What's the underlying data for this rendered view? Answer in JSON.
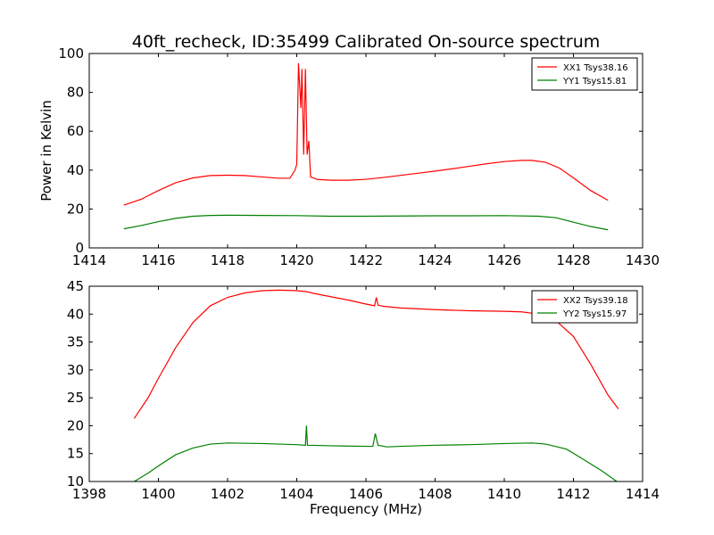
{
  "figure": {
    "title": "40ft_recheck, ID:35499 Calibrated On-source spectrum",
    "ylabel": "Power in Kelvin",
    "xlabel": "Frequency (MHz)"
  },
  "chart_data": [
    {
      "type": "line",
      "title": "40ft_recheck, ID:35499 Calibrated On-source spectrum",
      "xlabel": "",
      "ylabel": "Power in Kelvin",
      "xlim": [
        1414,
        1430
      ],
      "ylim": [
        0,
        100
      ],
      "xticks": [
        "1414",
        "1416",
        "1418",
        "1420",
        "1422",
        "1424",
        "1426",
        "1428",
        "1430"
      ],
      "yticks": [
        "0",
        "20",
        "40",
        "60",
        "80",
        "100"
      ],
      "grid": false,
      "legend_position": "top-right",
      "series": [
        {
          "name": "XX1 Tsys38.16",
          "color": "#ff0000",
          "points": [
            [
              1415.0,
              22.0
            ],
            [
              1415.5,
              25.0
            ],
            [
              1416.0,
              29.5
            ],
            [
              1416.5,
              33.5
            ],
            [
              1417.0,
              36.0
            ],
            [
              1417.5,
              37.2
            ],
            [
              1418.0,
              37.4
            ],
            [
              1418.5,
              37.2
            ],
            [
              1419.0,
              36.5
            ],
            [
              1419.5,
              35.8
            ],
            [
              1419.8,
              35.8
            ],
            [
              1419.95,
              40.0
            ],
            [
              1420.0,
              43.0
            ],
            [
              1420.05,
              95.0
            ],
            [
              1420.08,
              85.0
            ],
            [
              1420.12,
              72.0
            ],
            [
              1420.15,
              92.0
            ],
            [
              1420.2,
              48.0
            ],
            [
              1420.25,
              92.0
            ],
            [
              1420.3,
              48.0
            ],
            [
              1420.35,
              55.0
            ],
            [
              1420.4,
              36.5
            ],
            [
              1420.6,
              35.2
            ],
            [
              1421.0,
              34.8
            ],
            [
              1421.5,
              34.8
            ],
            [
              1422.0,
              35.3
            ],
            [
              1422.5,
              36.2
            ],
            [
              1423.0,
              37.3
            ],
            [
              1423.5,
              38.4
            ],
            [
              1424.0,
              39.5
            ],
            [
              1424.5,
              40.7
            ],
            [
              1425.0,
              42.0
            ],
            [
              1425.5,
              43.3
            ],
            [
              1426.0,
              44.4
            ],
            [
              1426.5,
              45.0
            ],
            [
              1426.8,
              45.0
            ],
            [
              1427.2,
              44.0
            ],
            [
              1427.6,
              41.0
            ],
            [
              1428.0,
              36.0
            ],
            [
              1428.5,
              29.5
            ],
            [
              1429.0,
              24.5
            ]
          ]
        },
        {
          "name": "YY1 Tsys15.81",
          "color": "#008000",
          "points": [
            [
              1415.0,
              9.8
            ],
            [
              1415.5,
              11.5
            ],
            [
              1416.0,
              13.5
            ],
            [
              1416.5,
              15.2
            ],
            [
              1417.0,
              16.3
            ],
            [
              1417.5,
              16.7
            ],
            [
              1418.0,
              16.8
            ],
            [
              1419.0,
              16.7
            ],
            [
              1420.0,
              16.6
            ],
            [
              1421.0,
              16.3
            ],
            [
              1422.0,
              16.3
            ],
            [
              1423.0,
              16.4
            ],
            [
              1424.0,
              16.5
            ],
            [
              1425.0,
              16.5
            ],
            [
              1426.0,
              16.6
            ],
            [
              1427.0,
              16.3
            ],
            [
              1427.5,
              15.5
            ],
            [
              1428.0,
              13.2
            ],
            [
              1428.5,
              11.0
            ],
            [
              1429.0,
              9.3
            ]
          ]
        }
      ]
    },
    {
      "type": "line",
      "title": "",
      "xlabel": "Frequency (MHz)",
      "ylabel": "",
      "xlim": [
        1398,
        1414
      ],
      "ylim": [
        10,
        45
      ],
      "xticks": [
        "1398",
        "1400",
        "1402",
        "1404",
        "1406",
        "1408",
        "1410",
        "1412",
        "1414"
      ],
      "yticks": [
        "10",
        "15",
        "20",
        "25",
        "30",
        "35",
        "40",
        "45"
      ],
      "grid": false,
      "legend_position": "top-right",
      "series": [
        {
          "name": "XX2 Tsys39.18",
          "color": "#ff0000",
          "points": [
            [
              1399.3,
              21.3
            ],
            [
              1399.7,
              25.0
            ],
            [
              1400.0,
              28.5
            ],
            [
              1400.5,
              34.0
            ],
            [
              1401.0,
              38.5
            ],
            [
              1401.5,
              41.5
            ],
            [
              1402.0,
              43.0
            ],
            [
              1402.5,
              43.8
            ],
            [
              1403.0,
              44.2
            ],
            [
              1403.5,
              44.3
            ],
            [
              1404.0,
              44.2
            ],
            [
              1404.3,
              44.0
            ],
            [
              1404.5,
              43.7
            ],
            [
              1405.0,
              43.1
            ],
            [
              1405.5,
              42.5
            ],
            [
              1406.0,
              41.8
            ],
            [
              1406.25,
              41.5
            ],
            [
              1406.3,
              43.0
            ],
            [
              1406.35,
              41.6
            ],
            [
              1406.5,
              41.4
            ],
            [
              1407.0,
              41.1
            ],
            [
              1408.0,
              40.8
            ],
            [
              1409.0,
              40.6
            ],
            [
              1410.0,
              40.5
            ],
            [
              1410.5,
              40.4
            ],
            [
              1411.0,
              40.0
            ],
            [
              1411.5,
              38.8
            ],
            [
              1412.0,
              36.0
            ],
            [
              1412.5,
              31.0
            ],
            [
              1413.0,
              25.5
            ],
            [
              1413.3,
              23.0
            ]
          ]
        },
        {
          "name": "YY2 Tsys15.97",
          "color": "#008000",
          "points": [
            [
              1399.3,
              10.0
            ],
            [
              1399.7,
              11.5
            ],
            [
              1400.0,
              12.8
            ],
            [
              1400.5,
              14.8
            ],
            [
              1401.0,
              16.0
            ],
            [
              1401.5,
              16.7
            ],
            [
              1402.0,
              16.9
            ],
            [
              1403.0,
              16.8
            ],
            [
              1404.0,
              16.6
            ],
            [
              1404.25,
              16.5
            ],
            [
              1404.28,
              20.0
            ],
            [
              1404.31,
              16.5
            ],
            [
              1405.0,
              16.4
            ],
            [
              1406.0,
              16.3
            ],
            [
              1406.2,
              16.3
            ],
            [
              1406.27,
              18.6
            ],
            [
              1406.35,
              16.5
            ],
            [
              1406.6,
              16.2
            ],
            [
              1407.0,
              16.3
            ],
            [
              1408.0,
              16.5
            ],
            [
              1409.0,
              16.6
            ],
            [
              1410.0,
              16.8
            ],
            [
              1410.8,
              16.9
            ],
            [
              1411.2,
              16.7
            ],
            [
              1411.8,
              15.8
            ],
            [
              1412.2,
              14.3
            ],
            [
              1412.8,
              12.0
            ],
            [
              1413.3,
              9.8
            ]
          ]
        }
      ]
    }
  ]
}
